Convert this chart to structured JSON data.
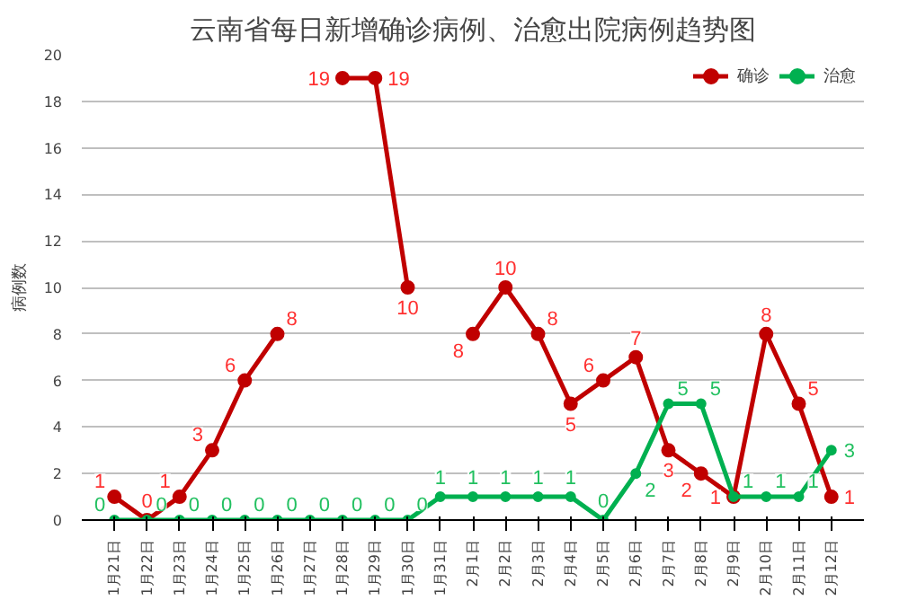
{
  "chart_data": {
    "type": "line",
    "title": "云南省每日新增确诊病例、治愈出院病例趋势图",
    "ylabel": "病例数",
    "categories": [
      "1月21日",
      "1月22日",
      "1月23日",
      "1月24日",
      "1月25日",
      "1月26日",
      "1月27日",
      "1月28日",
      "1月29日",
      "1月30日",
      "1月31日",
      "2月1日",
      "2月2日",
      "2月3日",
      "2月4日",
      "2月5日",
      "2月6日",
      "2月7日",
      "2月8日",
      "2月9日",
      "2月10日",
      "2月11日",
      "2月12日"
    ],
    "series": [
      {
        "name": "确诊",
        "color": "#c00000",
        "values": [
          1,
          0,
          1,
          3,
          6,
          8,
          null,
          19,
          19,
          10,
          null,
          8,
          10,
          8,
          5,
          6,
          7,
          3,
          2,
          1,
          8,
          5,
          1
        ]
      },
      {
        "name": "治愈",
        "color": "#00b050",
        "values": [
          0,
          0,
          0,
          0,
          0,
          0,
          0,
          0,
          0,
          0,
          1,
          1,
          1,
          1,
          1,
          0,
          2,
          5,
          5,
          1,
          1,
          1,
          3
        ]
      }
    ],
    "ylim": [
      0,
      20
    ],
    "yticks": [
      0,
      2,
      4,
      6,
      8,
      10,
      12,
      14,
      16,
      18,
      20
    ],
    "grid": "y",
    "legend": "top right",
    "marker": "circle",
    "line_style": "solid",
    "data_labels": true
  }
}
